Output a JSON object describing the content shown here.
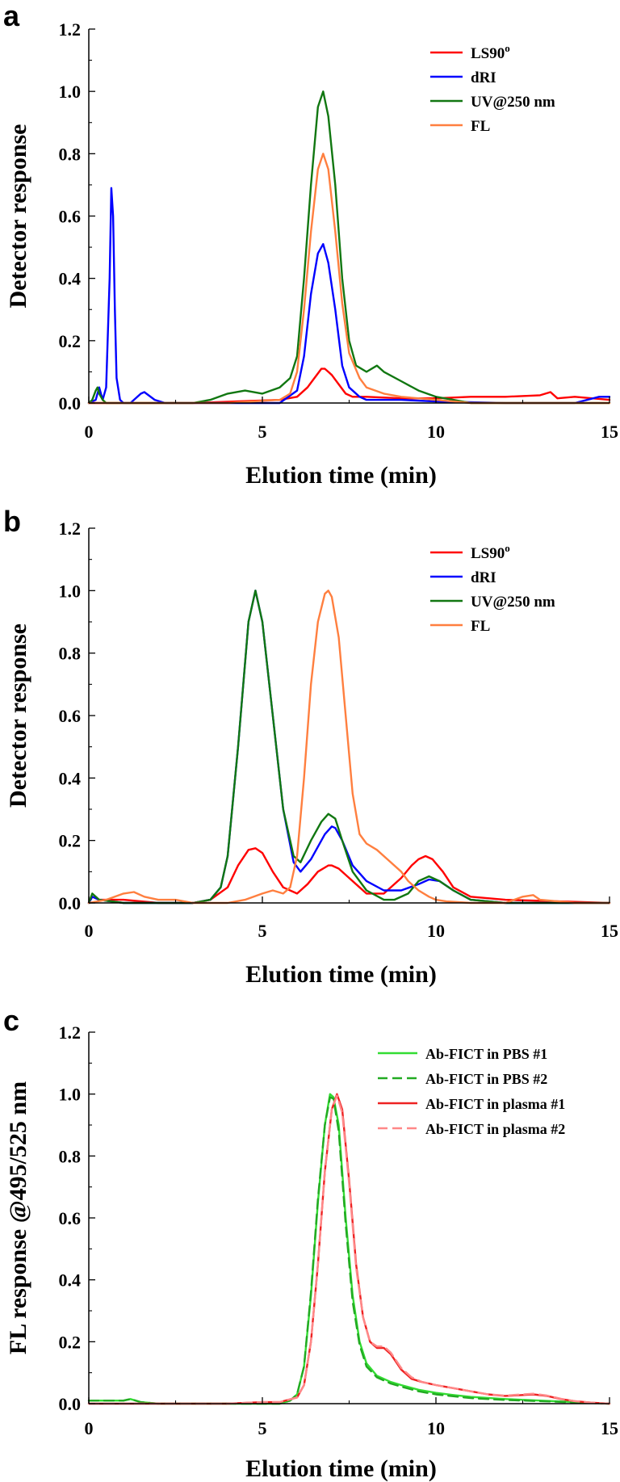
{
  "chart_data": [
    {
      "panel": "a",
      "type": "line",
      "xlabel": "Elution time (min)",
      "ylabel": "Detector response",
      "xlim": [
        0,
        15
      ],
      "ylim": [
        0,
        1.2
      ],
      "xticks": [
        0,
        5,
        10,
        15
      ],
      "yticks": [
        0.0,
        0.2,
        0.4,
        0.6,
        0.8,
        1.0,
        1.2
      ],
      "ytick_labels": [
        "0.0",
        "0.2",
        "0.4",
        "0.6",
        "0.8",
        "1.0",
        "1.2"
      ],
      "legend_position": "top-right",
      "series": [
        {
          "name": "LS90",
          "sup": "o",
          "color": "#ff0000",
          "dash": "solid",
          "x": [
            0,
            3,
            5.5,
            6.0,
            6.3,
            6.5,
            6.7,
            6.8,
            6.9,
            7.0,
            7.2,
            7.4,
            7.6,
            8.0,
            9,
            10,
            11,
            12,
            13,
            13.3,
            13.5,
            14,
            15
          ],
          "y": [
            0,
            0,
            0.01,
            0.02,
            0.05,
            0.08,
            0.11,
            0.11,
            0.1,
            0.09,
            0.06,
            0.03,
            0.02,
            0.02,
            0.015,
            0.015,
            0.02,
            0.02,
            0.025,
            0.035,
            0.015,
            0.02,
            0.01
          ]
        },
        {
          "name": "dRI",
          "color": "#0000ff",
          "dash": "solid",
          "x": [
            0,
            0.2,
            0.3,
            0.4,
            0.5,
            0.6,
            0.65,
            0.7,
            0.75,
            0.8,
            0.9,
            1.0,
            1.2,
            1.5,
            1.6,
            1.9,
            2.2,
            3,
            5.5,
            6.0,
            6.2,
            6.4,
            6.6,
            6.75,
            6.9,
            7.1,
            7.3,
            7.5,
            7.8,
            8.0,
            9,
            10,
            12,
            14,
            14.7,
            15
          ],
          "y": [
            0,
            0.01,
            0.05,
            0.01,
            0.05,
            0.4,
            0.69,
            0.6,
            0.3,
            0.08,
            0.01,
            0,
            0,
            0.03,
            0.035,
            0.01,
            0,
            0,
            0,
            0.04,
            0.15,
            0.35,
            0.48,
            0.51,
            0.45,
            0.3,
            0.12,
            0.05,
            0.02,
            0.01,
            0.01,
            0.005,
            0,
            0,
            0.02,
            0.02
          ]
        },
        {
          "name": "UV@250 nm",
          "color": "#117711",
          "dash": "solid",
          "x": [
            0,
            0.1,
            0.2,
            0.25,
            0.3,
            0.4,
            0.5,
            1,
            3,
            3.5,
            4.0,
            4.5,
            5.0,
            5.5,
            5.8,
            6.0,
            6.2,
            6.4,
            6.6,
            6.75,
            6.9,
            7.1,
            7.3,
            7.5,
            7.7,
            8.0,
            8.3,
            8.5,
            9.0,
            9.5,
            10.0,
            10.5,
            11,
            15
          ],
          "y": [
            0,
            0.01,
            0.04,
            0.05,
            0.03,
            0.01,
            0,
            0,
            0,
            0.01,
            0.03,
            0.04,
            0.03,
            0.05,
            0.08,
            0.15,
            0.4,
            0.7,
            0.95,
            1.0,
            0.92,
            0.7,
            0.4,
            0.2,
            0.12,
            0.1,
            0.12,
            0.1,
            0.07,
            0.04,
            0.02,
            0.01,
            0,
            0
          ]
        },
        {
          "name": "FL",
          "color": "#ff7f3f",
          "dash": "solid",
          "x": [
            0,
            4,
            5.5,
            5.8,
            6.0,
            6.2,
            6.4,
            6.6,
            6.75,
            6.9,
            7.1,
            7.3,
            7.5,
            7.8,
            8.0,
            8.5,
            9,
            10,
            10.5,
            11,
            15
          ],
          "y": [
            0,
            0,
            0.01,
            0.03,
            0.1,
            0.3,
            0.55,
            0.75,
            0.8,
            0.75,
            0.55,
            0.32,
            0.16,
            0.08,
            0.05,
            0.03,
            0.02,
            0.01,
            0.005,
            0,
            0
          ]
        }
      ]
    },
    {
      "panel": "b",
      "type": "line",
      "xlabel": "Elution time (min)",
      "ylabel": "Detector response",
      "xlim": [
        0,
        15
      ],
      "ylim": [
        0,
        1.2
      ],
      "xticks": [
        0,
        5,
        10,
        15
      ],
      "yticks": [
        0.0,
        0.2,
        0.4,
        0.6,
        0.8,
        1.0,
        1.2
      ],
      "ytick_labels": [
        "0.0",
        "0.2",
        "0.4",
        "0.6",
        "0.8",
        "1.0",
        "1.2"
      ],
      "legend_position": "top-right",
      "series": [
        {
          "name": "LS90",
          "sup": "o",
          "color": "#ff0000",
          "dash": "solid",
          "x": [
            0,
            0.1,
            0.3,
            1,
            2,
            3,
            3.5,
            4.0,
            4.3,
            4.6,
            4.8,
            5.0,
            5.3,
            5.6,
            6.0,
            6.3,
            6.6,
            6.9,
            7.0,
            7.2,
            7.5,
            7.8,
            8.0,
            8.5,
            9.0,
            9.3,
            9.5,
            9.7,
            9.9,
            10.2,
            10.5,
            11,
            12,
            15
          ],
          "y": [
            0,
            0.02,
            0.01,
            0.01,
            0,
            0,
            0.01,
            0.05,
            0.12,
            0.17,
            0.175,
            0.16,
            0.1,
            0.05,
            0.03,
            0.06,
            0.1,
            0.12,
            0.12,
            0.11,
            0.08,
            0.05,
            0.03,
            0.03,
            0.08,
            0.12,
            0.14,
            0.15,
            0.14,
            0.1,
            0.05,
            0.02,
            0.01,
            0
          ]
        },
        {
          "name": "dRI",
          "color": "#0000ff",
          "dash": "solid",
          "x": [
            0,
            0.1,
            0.3,
            1,
            3,
            3.5,
            3.8,
            4.0,
            4.3,
            4.6,
            4.8,
            5.0,
            5.3,
            5.6,
            5.9,
            6.1,
            6.4,
            6.8,
            7.0,
            7.1,
            7.3,
            7.6,
            8.0,
            8.5,
            9.0,
            9.5,
            9.8,
            10.1,
            10.5,
            11,
            12,
            15
          ],
          "y": [
            0,
            0.02,
            0.01,
            0,
            0,
            0.01,
            0.05,
            0.15,
            0.5,
            0.9,
            1.0,
            0.9,
            0.6,
            0.3,
            0.13,
            0.1,
            0.14,
            0.22,
            0.245,
            0.24,
            0.2,
            0.12,
            0.07,
            0.04,
            0.04,
            0.06,
            0.075,
            0.07,
            0.04,
            0.01,
            0,
            0
          ]
        },
        {
          "name": "UV@250 nm",
          "color": "#117711",
          "dash": "solid",
          "x": [
            0,
            0.1,
            0.3,
            1,
            3,
            3.5,
            3.8,
            4.0,
            4.3,
            4.6,
            4.8,
            5.0,
            5.3,
            5.6,
            5.9,
            6.1,
            6.4,
            6.7,
            6.9,
            7.1,
            7.3,
            7.6,
            8.0,
            8.5,
            8.8,
            9.2,
            9.5,
            9.8,
            10.1,
            10.5,
            11,
            12,
            15
          ],
          "y": [
            0,
            0.03,
            0.01,
            0,
            0,
            0.01,
            0.05,
            0.15,
            0.5,
            0.9,
            1.0,
            0.9,
            0.6,
            0.3,
            0.15,
            0.13,
            0.2,
            0.26,
            0.285,
            0.27,
            0.2,
            0.1,
            0.04,
            0.01,
            0.01,
            0.03,
            0.07,
            0.085,
            0.07,
            0.04,
            0.01,
            0,
            0
          ]
        },
        {
          "name": "FL",
          "color": "#ff7f3f",
          "dash": "solid",
          "x": [
            0,
            0.5,
            1.0,
            1.3,
            1.6,
            2.0,
            2.5,
            3,
            4,
            4.5,
            5.0,
            5.3,
            5.6,
            5.8,
            6.0,
            6.2,
            6.4,
            6.6,
            6.8,
            6.9,
            7.0,
            7.2,
            7.4,
            7.6,
            7.8,
            8.0,
            8.3,
            8.6,
            9.0,
            9.2,
            9.5,
            9.8,
            10.0,
            10.3,
            11,
            12,
            12.5,
            12.8,
            13,
            14,
            15
          ],
          "y": [
            0,
            0.01,
            0.03,
            0.035,
            0.02,
            0.01,
            0.01,
            0,
            0,
            0.01,
            0.03,
            0.04,
            0.03,
            0.05,
            0.15,
            0.4,
            0.7,
            0.9,
            0.99,
            1.0,
            0.98,
            0.85,
            0.6,
            0.35,
            0.22,
            0.19,
            0.17,
            0.14,
            0.1,
            0.07,
            0.04,
            0.02,
            0.01,
            0.005,
            0,
            0,
            0.02,
            0.025,
            0.01,
            0,
            0
          ]
        }
      ]
    },
    {
      "panel": "c",
      "type": "line",
      "xlabel": "Elution time (min)",
      "ylabel": "FL response @495/525 nm",
      "xlim": [
        0,
        15
      ],
      "ylim": [
        0,
        1.2
      ],
      "xticks": [
        0,
        5,
        10,
        15
      ],
      "yticks": [
        0.0,
        0.2,
        0.4,
        0.6,
        0.8,
        1.0,
        1.2
      ],
      "ytick_labels": [
        "0.0",
        "0.2",
        "0.4",
        "0.6",
        "0.8",
        "1.0",
        "1.2"
      ],
      "legend_position": "top-right",
      "series": [
        {
          "name": "Ab-FICT in PBS #1",
          "color": "#33dd33",
          "dash": "solid",
          "x": [
            0,
            0.5,
            1.0,
            1.2,
            1.5,
            2,
            3,
            4,
            5,
            5.5,
            5.8,
            6.0,
            6.2,
            6.4,
            6.6,
            6.8,
            6.95,
            7.05,
            7.2,
            7.4,
            7.6,
            7.8,
            8.0,
            8.3,
            8.7,
            9.0,
            9.5,
            10.0,
            10.5,
            11,
            12,
            13,
            14,
            15
          ],
          "y": [
            0.01,
            0.01,
            0.01,
            0.015,
            0.005,
            0,
            0,
            0,
            0,
            0,
            0.01,
            0.03,
            0.12,
            0.35,
            0.65,
            0.9,
            1.0,
            0.99,
            0.9,
            0.6,
            0.35,
            0.2,
            0.13,
            0.09,
            0.07,
            0.06,
            0.045,
            0.035,
            0.028,
            0.022,
            0.015,
            0.01,
            0.005,
            0
          ]
        },
        {
          "name": "Ab-FICT in PBS #2",
          "color": "#22aa22",
          "dash": "dashed",
          "x": [
            0,
            0.5,
            1.0,
            1.2,
            1.5,
            2,
            3,
            4,
            5,
            5.5,
            5.8,
            6.0,
            6.2,
            6.4,
            6.6,
            6.8,
            6.95,
            7.05,
            7.2,
            7.4,
            7.6,
            7.8,
            8.0,
            8.3,
            8.7,
            9.0,
            9.5,
            10.0,
            10.5,
            11,
            12,
            13,
            14,
            15
          ],
          "y": [
            0.01,
            0.01,
            0.01,
            0.015,
            0.005,
            0,
            0,
            0,
            0,
            0,
            0.01,
            0.03,
            0.12,
            0.36,
            0.66,
            0.9,
            0.99,
            0.985,
            0.88,
            0.58,
            0.33,
            0.19,
            0.12,
            0.085,
            0.065,
            0.055,
            0.04,
            0.03,
            0.024,
            0.018,
            0.012,
            0.008,
            0.004,
            0
          ]
        },
        {
          "name": "Ab-FICT in plasma #1",
          "color": "#ee2222",
          "dash": "solid",
          "x": [
            0,
            1,
            2,
            3,
            4,
            5,
            5.5,
            6.0,
            6.2,
            6.4,
            6.6,
            6.8,
            7.0,
            7.15,
            7.3,
            7.5,
            7.7,
            7.9,
            8.1,
            8.3,
            8.5,
            8.7,
            9.0,
            9.3,
            9.6,
            10.0,
            10.5,
            11,
            11.5,
            12,
            12.5,
            12.8,
            13.2,
            13.6,
            14,
            14.5,
            15
          ],
          "y": [
            0,
            0,
            0,
            0,
            0,
            0.005,
            0.005,
            0.02,
            0.06,
            0.2,
            0.45,
            0.75,
            0.95,
            1.0,
            0.95,
            0.72,
            0.45,
            0.28,
            0.2,
            0.18,
            0.18,
            0.16,
            0.11,
            0.08,
            0.07,
            0.06,
            0.05,
            0.04,
            0.03,
            0.025,
            0.028,
            0.03,
            0.025,
            0.015,
            0.008,
            0.003,
            0
          ]
        },
        {
          "name": "Ab-FICT in plasma #2",
          "color": "#ff8888",
          "dash": "dashed",
          "x": [
            0,
            1,
            2,
            3,
            4,
            5,
            5.5,
            6.0,
            6.2,
            6.4,
            6.6,
            6.8,
            7.0,
            7.15,
            7.3,
            7.5,
            7.7,
            7.9,
            8.1,
            8.3,
            8.5,
            8.7,
            9.0,
            9.3,
            9.6,
            10.0,
            10.5,
            11,
            11.5,
            12,
            12.5,
            12.8,
            13.2,
            13.6,
            14,
            14.5,
            15
          ],
          "y": [
            0,
            0,
            0,
            0,
            0,
            0.005,
            0.005,
            0.02,
            0.06,
            0.2,
            0.45,
            0.75,
            0.95,
            0.995,
            0.94,
            0.71,
            0.44,
            0.28,
            0.2,
            0.185,
            0.185,
            0.165,
            0.115,
            0.085,
            0.07,
            0.06,
            0.05,
            0.04,
            0.03,
            0.026,
            0.03,
            0.032,
            0.026,
            0.016,
            0.008,
            0.003,
            0
          ]
        }
      ]
    }
  ]
}
